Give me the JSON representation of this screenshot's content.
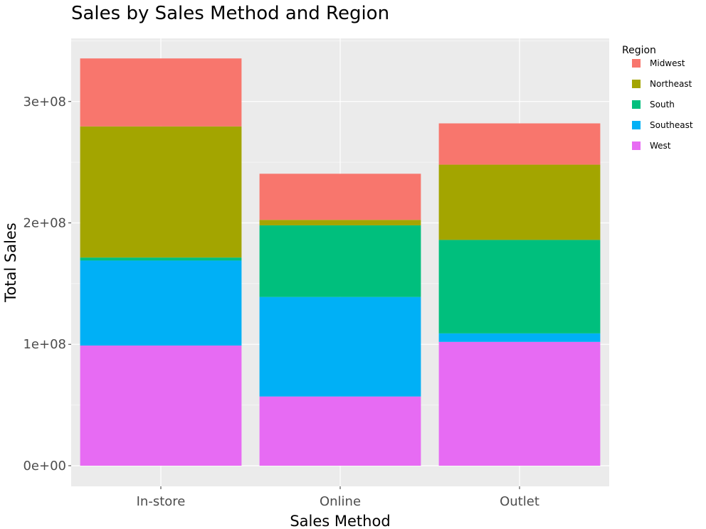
{
  "chart_data": {
    "type": "bar",
    "stacked": true,
    "title": "Sales by Sales Method and Region",
    "xlabel": "Sales Method",
    "ylabel": "Total Sales",
    "categories": [
      "In-store",
      "Online",
      "Outlet"
    ],
    "ylim": [
      -17000000,
      352000000
    ],
    "y_ticks": [
      0,
      100000000,
      200000000,
      300000000
    ],
    "y_tick_labels": [
      "0e+00",
      "1e+08",
      "2e+08",
      "3e+08"
    ],
    "grid": true,
    "legend": {
      "title": "Region",
      "position": "right"
    },
    "series": [
      {
        "name": "Midwest",
        "color": "#F8766D",
        "values": [
          56000000,
          38000000,
          34000000
        ]
      },
      {
        "name": "Northeast",
        "color": "#A3A500",
        "values": [
          108000000,
          4500000,
          62000000
        ]
      },
      {
        "name": "South",
        "color": "#00BF7D",
        "values": [
          2500000,
          59000000,
          77000000
        ]
      },
      {
        "name": "Southeast",
        "color": "#00B0F6",
        "values": [
          70000000,
          82000000,
          7000000
        ]
      },
      {
        "name": "West",
        "color": "#E76BF3",
        "values": [
          99000000,
          57000000,
          102000000
        ]
      }
    ]
  },
  "colors": {
    "panel_background": "#EBEBEB",
    "grid_major": "#FFFFFF",
    "grid_minor": "#F5F5F5"
  }
}
